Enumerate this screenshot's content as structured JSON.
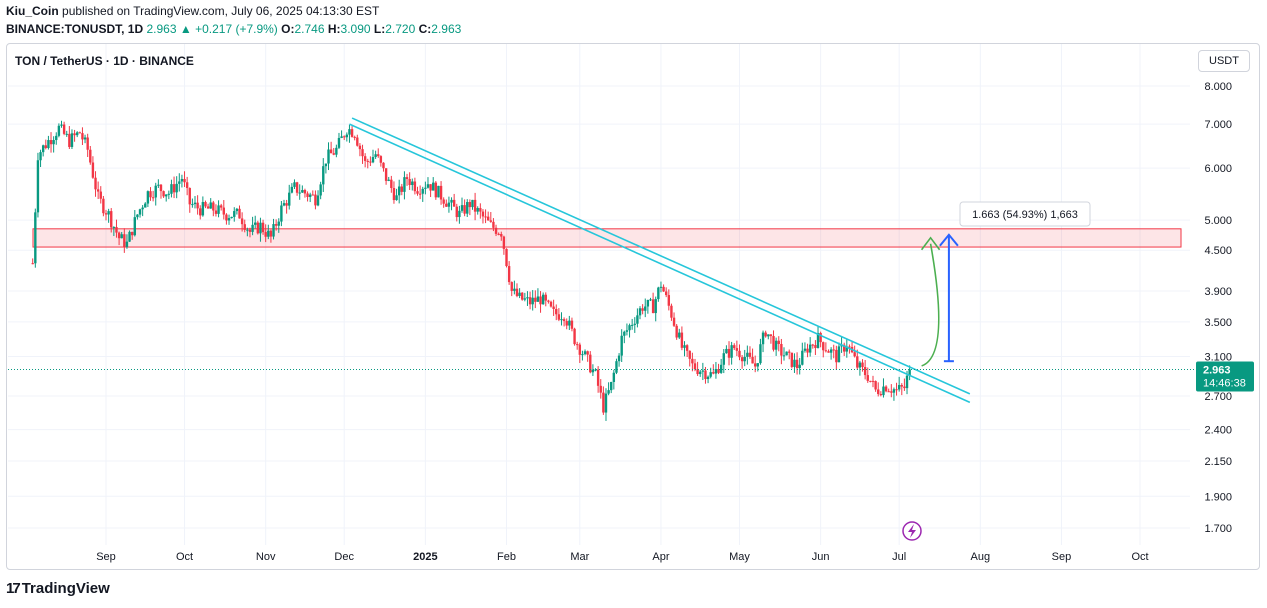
{
  "header": {
    "author": "Kiu_Coin",
    "published_text": "published on TradingView.com, July 06, 2025 04:13:30 EST",
    "symbol_full": "BINANCE:TONUSDT, 1D",
    "last": "2.963",
    "change": "+0.217 (+7.9%)",
    "o_label": "O:",
    "o": "2.746",
    "h_label": "H:",
    "h": "3.090",
    "l_label": "L:",
    "l": "2.720",
    "c_label": "C:",
    "c": "2.963"
  },
  "legend": {
    "title": "TON / TetherUS · 1D · BINANCE"
  },
  "currency_button": "USDT",
  "price_tag": {
    "price": "2.963",
    "countdown": "14:46:38"
  },
  "measure_label": "1.663 (54.93%) 1,663",
  "brand": {
    "name": "TradingView",
    "mark": "17"
  },
  "colors": {
    "up": "#089981",
    "down": "#f23645",
    "trend": "#26c6da",
    "zone": "#f23645",
    "arrow": "#2962ff",
    "curve": "#4caf50"
  },
  "chart_data": {
    "type": "candlestick",
    "title": "TON / TetherUS · 1D · BINANCE",
    "scale": "log",
    "y_ticks": [
      "8.000",
      "7.000",
      "6.000",
      "5.000",
      "4.500",
      "3.900",
      "3.500",
      "3.100",
      "2.700",
      "2.400",
      "2.150",
      "1.900",
      "1.700"
    ],
    "x_ticks": [
      "Sep",
      "Oct",
      "Nov",
      "Dec",
      "2025",
      "Feb",
      "Mar",
      "Apr",
      "May",
      "Jun",
      "Jul",
      "Aug",
      "Sep",
      "Oct"
    ],
    "close_path": [
      [
        "2024-08-04",
        4.3
      ],
      [
        "2024-08-06",
        6.3
      ],
      [
        "2024-08-10",
        6.6
      ],
      [
        "2024-08-14",
        6.9
      ],
      [
        "2024-08-18",
        6.6
      ],
      [
        "2024-08-22",
        6.8
      ],
      [
        "2024-08-25",
        6.4
      ],
      [
        "2024-08-29",
        5.4
      ],
      [
        "2024-09-02",
        5.1
      ],
      [
        "2024-09-06",
        4.7
      ],
      [
        "2024-09-09",
        4.6
      ],
      [
        "2024-09-13",
        5.1
      ],
      [
        "2024-09-17",
        5.5
      ],
      [
        "2024-09-21",
        5.6
      ],
      [
        "2024-09-25",
        5.5
      ],
      [
        "2024-09-30",
        5.8
      ],
      [
        "2024-10-03",
        5.3
      ],
      [
        "2024-10-07",
        5.2
      ],
      [
        "2024-10-12",
        5.2
      ],
      [
        "2024-10-17",
        5.1
      ],
      [
        "2024-10-22",
        5.1
      ],
      [
        "2024-10-26",
        4.8
      ],
      [
        "2024-10-30",
        4.9
      ],
      [
        "2024-11-03",
        4.7
      ],
      [
        "2024-11-07",
        5.2
      ],
      [
        "2024-11-12",
        5.6
      ],
      [
        "2024-11-16",
        5.5
      ],
      [
        "2024-11-20",
        5.4
      ],
      [
        "2024-11-24",
        6.2
      ],
      [
        "2024-11-28",
        6.4
      ],
      [
        "2024-12-02",
        6.9
      ],
      [
        "2024-12-05",
        6.8
      ],
      [
        "2024-12-09",
        6.1
      ],
      [
        "2024-12-13",
        6.3
      ],
      [
        "2024-12-17",
        5.8
      ],
      [
        "2024-12-21",
        5.4
      ],
      [
        "2024-12-25",
        5.8
      ],
      [
        "2024-12-29",
        5.6
      ],
      [
        "2025-01-02",
        5.7
      ],
      [
        "2025-01-06",
        5.5
      ],
      [
        "2025-01-10",
        5.3
      ],
      [
        "2025-01-14",
        5.1
      ],
      [
        "2025-01-18",
        5.3
      ],
      [
        "2025-01-22",
        5.1
      ],
      [
        "2025-01-26",
        4.9
      ],
      [
        "2025-01-30",
        4.8
      ],
      [
        "2025-02-03",
        3.9
      ],
      [
        "2025-02-06",
        3.8
      ],
      [
        "2025-02-10",
        3.75
      ],
      [
        "2025-02-14",
        3.8
      ],
      [
        "2025-02-19",
        3.6
      ],
      [
        "2025-02-23",
        3.6
      ],
      [
        "2025-02-27",
        3.3
      ],
      [
        "2025-03-03",
        3.1
      ],
      [
        "2025-03-07",
        2.9
      ],
      [
        "2025-03-10",
        2.6
      ],
      [
        "2025-03-13",
        2.8
      ],
      [
        "2025-03-17",
        3.3
      ],
      [
        "2025-03-21",
        3.5
      ],
      [
        "2025-03-25",
        3.7
      ],
      [
        "2025-03-29",
        3.7
      ],
      [
        "2025-04-01",
        4.0
      ],
      [
        "2025-04-05",
        3.6
      ],
      [
        "2025-04-09",
        3.2
      ],
      [
        "2025-04-13",
        3.0
      ],
      [
        "2025-04-17",
        2.95
      ],
      [
        "2025-04-21",
        2.9
      ],
      [
        "2025-04-25",
        3.1
      ],
      [
        "2025-04-29",
        3.2
      ],
      [
        "2025-05-03",
        3.1
      ],
      [
        "2025-05-07",
        3.0
      ],
      [
        "2025-05-11",
        3.4
      ],
      [
        "2025-05-15",
        3.2
      ],
      [
        "2025-05-19",
        3.1
      ],
      [
        "2025-05-23",
        3.0
      ],
      [
        "2025-05-27",
        3.2
      ],
      [
        "2025-05-31",
        3.3
      ],
      [
        "2025-06-03",
        3.2
      ],
      [
        "2025-06-07",
        3.1
      ],
      [
        "2025-06-11",
        3.25
      ],
      [
        "2025-06-15",
        3.0
      ],
      [
        "2025-06-19",
        2.9
      ],
      [
        "2025-06-22",
        2.75
      ],
      [
        "2025-06-26",
        2.8
      ],
      [
        "2025-06-30",
        2.75
      ],
      [
        "2025-07-03",
        2.78
      ],
      [
        "2025-07-05",
        2.963
      ]
    ],
    "resistance_zone": [
      4.55,
      4.85
    ],
    "trendlines": [
      {
        "from": [
          "2024-12-04",
          7.15
        ],
        "to": [
          "2025-07-28",
          2.72
        ]
      },
      {
        "from": [
          "2024-12-03",
          7.0
        ],
        "to": [
          "2025-07-28",
          2.64
        ]
      }
    ],
    "measure": {
      "from": [
        "2025-07-20",
        3.05
      ],
      "to": [
        "2025-07-20",
        4.75
      ],
      "label": "1.663 (54.93%) 1,663"
    },
    "last_price": 2.963
  }
}
